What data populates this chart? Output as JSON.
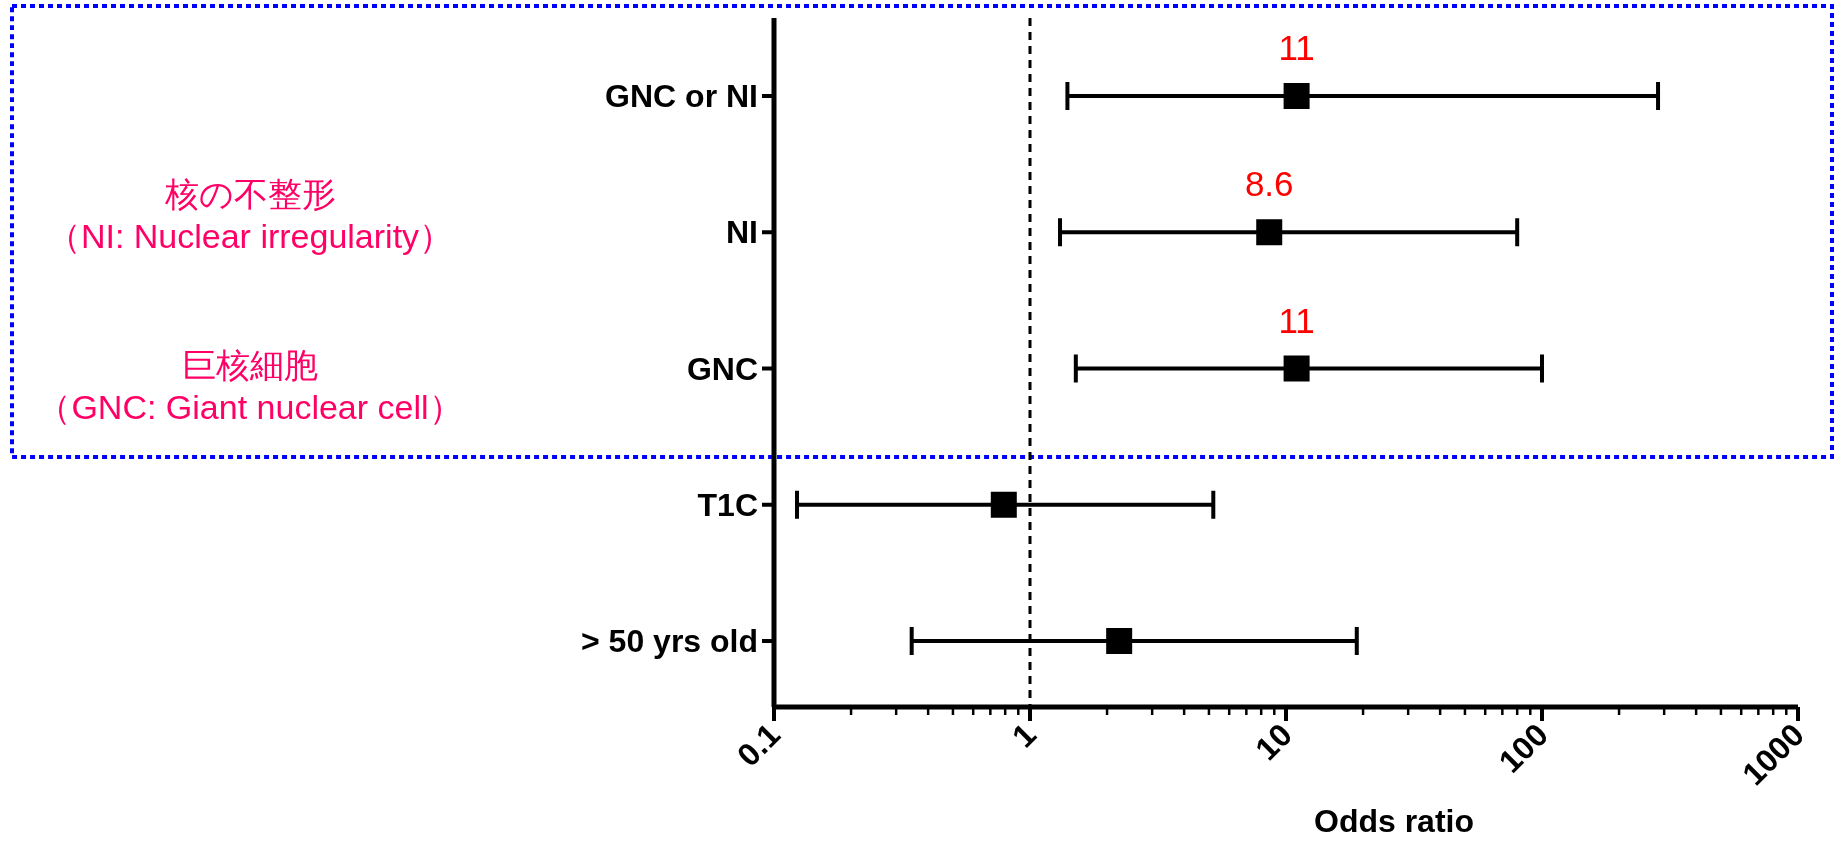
{
  "chart_data": {
    "type": "scatter",
    "orientation": "horizontal",
    "log": "x",
    "xlabel": "Odds ratio",
    "categories": [
      "GNC or NI",
      "NI",
      "GNC",
      "T1C",
      "> 50 yrs old"
    ],
    "values": [
      11,
      8.6,
      11,
      0.79,
      2.23
    ],
    "errors": [
      [
        1.4,
        284
      ],
      [
        1.31,
        80
      ],
      [
        1.51,
        100
      ],
      [
        0.123,
        5.2
      ],
      [
        0.345,
        18.9
      ]
    ],
    "value_labels": [
      "11",
      "8.6",
      "11",
      null,
      null
    ],
    "marker": "square",
    "color": "#000000",
    "xlim": [
      0.1,
      1000
    ],
    "xticks": [
      0.1,
      1,
      10,
      100,
      1000
    ],
    "ref_lines": [
      {
        "axis": "x",
        "value": 1,
        "line_style": "dashed",
        "color": "#000000"
      }
    ],
    "annotations": [
      "核の不整形",
      "（NI: Nuclear irregularity）",
      "巨核細胞",
      "（GNC: Giant nuclear cell）"
    ],
    "grid": false
  }
}
